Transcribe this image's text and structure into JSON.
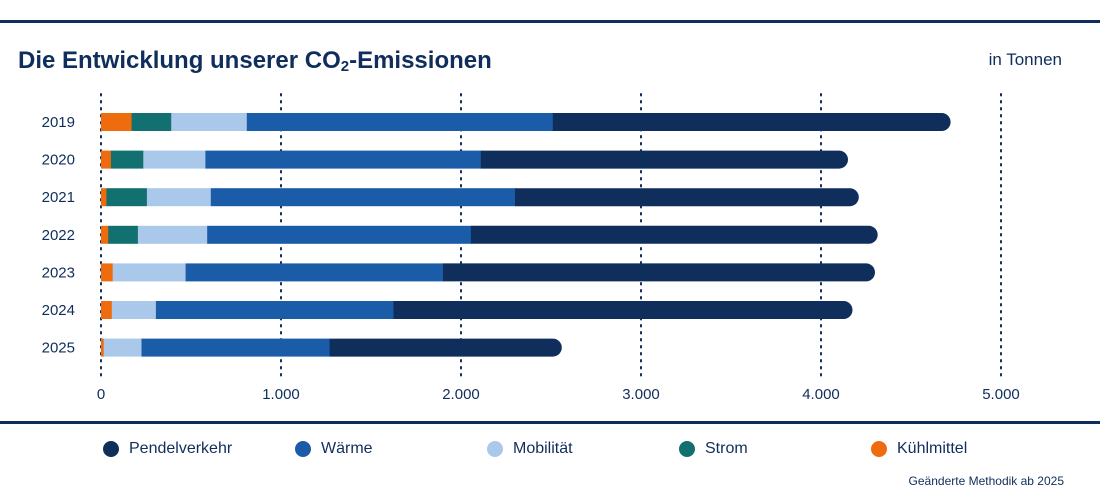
{
  "header": {
    "title_prefix": "Die Entwicklung unserer CO",
    "title_sub": "2",
    "title_suffix": "-Emissionen",
    "unit": "in Tonnen"
  },
  "note": "Geänderte Methodik ab 2025",
  "colors": {
    "Pendelverkehr": "#0f2e5c",
    "Wärme": "#1a5ca8",
    "Mobilität": "#a9c8ea",
    "Strom": "#137070",
    "Kühlmittel": "#ef6c0e"
  },
  "legend": [
    {
      "label": "Pendelverkehr",
      "color": "#0f2e5c"
    },
    {
      "label": "Wärme",
      "color": "#1a5ca8"
    },
    {
      "label": "Mobilität",
      "color": "#a9c8ea"
    },
    {
      "label": "Strom",
      "color": "#137070"
    },
    {
      "label": "Kühlmittel",
      "color": "#ef6c0e"
    }
  ],
  "chart_data": {
    "type": "bar",
    "orientation": "horizontal",
    "stacked": true,
    "categories": [
      "2019",
      "2020",
      "2021",
      "2022",
      "2023",
      "2024",
      "2025"
    ],
    "series": [
      {
        "name": "Kühlmittel",
        "values": [
          170,
          55,
          30,
          40,
          65,
          60,
          15
        ]
      },
      {
        "name": "Strom",
        "values": [
          220,
          180,
          225,
          165,
          0,
          0,
          0
        ]
      },
      {
        "name": "Mobilität",
        "values": [
          420,
          345,
          355,
          385,
          405,
          245,
          210
        ]
      },
      {
        "name": "Wärme",
        "values": [
          1700,
          1530,
          1690,
          1465,
          1430,
          1320,
          1045
        ]
      },
      {
        "name": "Pendelverkehr",
        "values": [
          2210,
          2040,
          1910,
          2260,
          2400,
          2550,
          1290
        ]
      }
    ],
    "xlim": [
      0,
      5000
    ],
    "xticks": [
      0,
      1000,
      2000,
      3000,
      4000,
      5000
    ],
    "xtick_labels": [
      "0",
      "1.000",
      "2.000",
      "3.000",
      "4.000",
      "5.000"
    ],
    "grid": "vertical dotted",
    "legend_position": "bottom"
  }
}
